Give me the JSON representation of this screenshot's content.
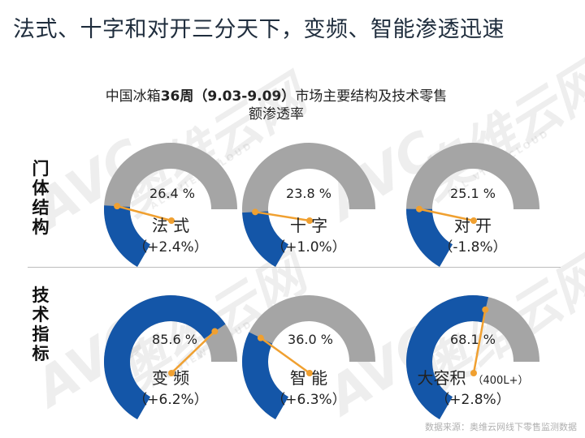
{
  "page_title": "法式、十字和对开三分天下，变频、智能渗透迅速",
  "chart_title": {
    "prefix": "中国冰箱",
    "week": "36周",
    "period": "（9.03-9.09）",
    "suffix": "市场主要结构及技术零售",
    "line2": "额渗透率"
  },
  "section_labels": {
    "door": "门体结构",
    "tech": "技术指标"
  },
  "watermark": {
    "brand": "AVC",
    "brand_cn": "奥维云网",
    "tagline": "ALL VIEW CLOUD"
  },
  "source": "数据来源：奥维云网线下零售监测数据",
  "colors": {
    "filled": "#1456a8",
    "remaining": "#a5a5a5",
    "needle": "#f0a030"
  },
  "chart_data": {
    "type": "gauge",
    "title": "中国冰箱36周（9.03-9.09）市场主要结构及技术零售额渗透率",
    "unit": "%",
    "groups": [
      {
        "name": "门体结构",
        "items": [
          {
            "name": "法 式",
            "value": 26.4,
            "value_label": "26.4 %",
            "change": "（+2.4%）",
            "note": ""
          },
          {
            "name": "十 字",
            "value": 23.8,
            "value_label": "23.8 %",
            "change": "（+1.0%）",
            "note": ""
          },
          {
            "name": "对 开",
            "value": 25.1,
            "value_label": "25.1 %",
            "change": "（-1.8%）",
            "note": ""
          }
        ]
      },
      {
        "name": "技术指标",
        "items": [
          {
            "name": "变 频",
            "value": 85.6,
            "value_label": "85.6 %",
            "change": "（+6.2%）",
            "note": ""
          },
          {
            "name": "智 能",
            "value": 36.0,
            "value_label": "36.0 %",
            "change": "（+6.3%）",
            "note": ""
          },
          {
            "name": "大容积",
            "value": 68.1,
            "value_label": "68.1 %",
            "change": "（+2.8%）",
            "note": "（400L+）"
          }
        ]
      }
    ]
  }
}
